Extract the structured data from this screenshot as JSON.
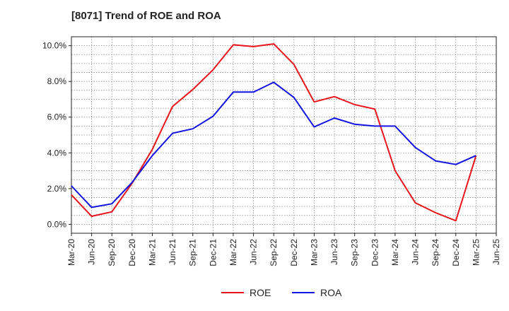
{
  "chart_data": {
    "type": "line",
    "title": "[8071]  Trend of ROE and ROA",
    "x": [
      "Mar-20",
      "Jun-20",
      "Sep-20",
      "Dec-20",
      "Mar-21",
      "Jun-21",
      "Sep-21",
      "Dec-21",
      "Mar-22",
      "Jun-22",
      "Sep-22",
      "Dec-22",
      "Mar-23",
      "Jun-23",
      "Sep-23",
      "Dec-23",
      "Mar-24",
      "Jun-24",
      "Sep-24",
      "Dec-24",
      "Mar-25",
      "Jun-25"
    ],
    "y_ticks": [
      "0.0%",
      "2.0%",
      "4.0%",
      "6.0%",
      "8.0%",
      "10.0%"
    ],
    "y_tick_values": [
      0,
      2,
      4,
      6,
      8,
      10
    ],
    "ylim": [
      -0.5,
      10.5
    ],
    "grid": true,
    "legend_position": "bottom",
    "series": [
      {
        "name": "ROE",
        "color": "#e8141b",
        "values": [
          1.65,
          0.45,
          0.7,
          2.3,
          4.2,
          6.6,
          7.55,
          8.65,
          10.05,
          9.95,
          10.1,
          8.95,
          6.85,
          7.15,
          6.7,
          6.45,
          3.0,
          1.2,
          0.65,
          0.2,
          3.85,
          null
        ]
      },
      {
        "name": "ROA",
        "color": "#1414e0",
        "values": [
          2.15,
          0.95,
          1.15,
          2.35,
          3.85,
          5.1,
          5.35,
          6.05,
          7.4,
          7.4,
          7.95,
          7.1,
          5.45,
          5.95,
          5.6,
          5.5,
          5.5,
          4.3,
          3.55,
          3.35,
          3.85,
          null
        ]
      }
    ]
  }
}
